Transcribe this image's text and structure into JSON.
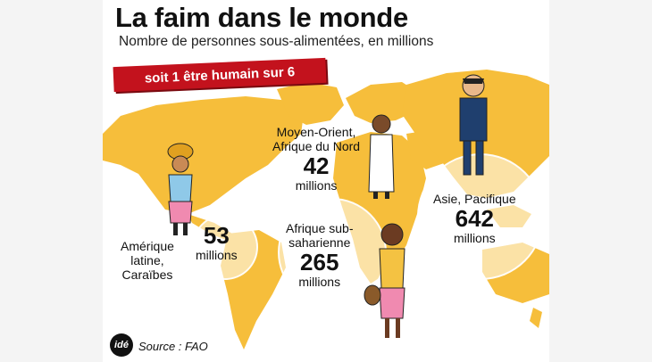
{
  "title": "La faim dans le monde",
  "subtitle": "Nombre de personnes sous-alimentées, en millions",
  "banner": "soit 1 être humain sur 6",
  "regions": [
    {
      "name_line1": "Amérique",
      "name_line2": "latine,",
      "name_line3": "Caraïbes",
      "value": "53",
      "unit": "millions"
    },
    {
      "name_line1": "Moyen-Orient,",
      "name_line2": "Afrique du Nord",
      "value": "42",
      "unit": "millions"
    },
    {
      "name_line1": "Afrique sub-",
      "name_line2": "saharienne",
      "value": "265",
      "unit": "millions"
    },
    {
      "name_line1": "Asie, Pacifique",
      "value": "642",
      "unit": "millions"
    }
  ],
  "source": "Source : FAO",
  "logo_text": "idé",
  "colors": {
    "land": "#f6be3b",
    "banner": "#c3121d",
    "highlight": "#ffffff"
  }
}
